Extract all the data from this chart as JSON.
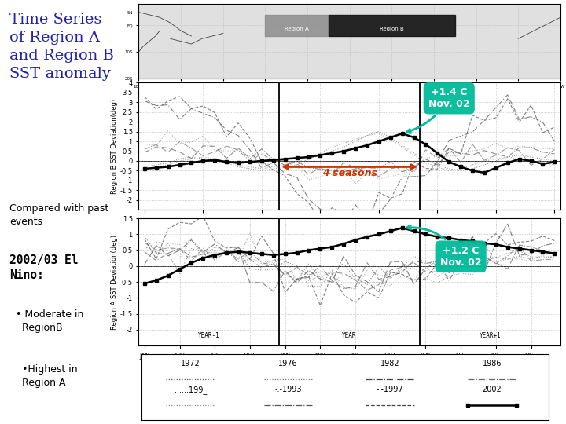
{
  "title_lines": [
    "Time Series",
    "of Region A",
    "and Region B",
    "SST anomaly"
  ],
  "subtitle": "Compared with past\nevents",
  "el_nino_title": "2002/03 El\nNino:",
  "bullets": [
    "  • Moderate in\n    RegionB",
    "    •Highest in\n    Region A"
  ],
  "bg_color": "#ffffff",
  "plot_bg": "#ffffff",
  "title_color": "#2222aa",
  "text_color": "#000000",
  "annotation_bg": "#00bb99",
  "arrow_color": "#cc3300",
  "x_ticks": [
    "JAN",
    "APR",
    "JUL",
    "OCT",
    "JAN",
    "APR",
    "JUL",
    "OCT",
    "JAN",
    "AFR",
    "JUL",
    "OCT"
  ],
  "x_labels_year": [
    "YEAR-1",
    "YEAR",
    "YEAR+1"
  ],
  "region_b_ylim": [
    -2.5,
    4.0
  ],
  "region_a_ylim": [
    -2.5,
    1.5
  ],
  "region_b_yticks": [
    -2,
    -1.5,
    -1,
    -0.5,
    0,
    0.5,
    1,
    1.5,
    2,
    2.5,
    3,
    3.5,
    4
  ],
  "region_a_yticks": [
    -2,
    -1.5,
    -1,
    -0.5,
    0,
    0.5,
    1,
    1.5
  ],
  "annotation_b_text": "+1.4 C\nNov. 02",
  "annotation_a_text": "+1.2 C\nNov. 02",
  "seasons_text": "4 seasons",
  "legend_row1": [
    "1972",
    "1976",
    "1982",
    "1986"
  ],
  "legend_row2": [
    "......199_",
    "-.-1993",
    "-·-1997",
    "●2002"
  ]
}
